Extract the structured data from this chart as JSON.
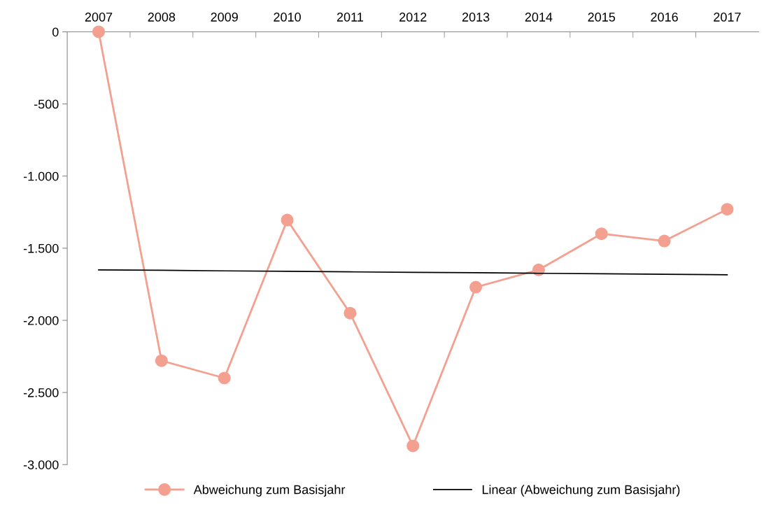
{
  "chart_data": {
    "type": "line",
    "categories": [
      "2007",
      "2008",
      "2009",
      "2010",
      "2011",
      "2012",
      "2013",
      "2014",
      "2015",
      "2016",
      "2017"
    ],
    "series": [
      {
        "name": "Abweichung zum Basisjahr",
        "color": "#f4a090",
        "marker": "circle",
        "values": [
          0,
          -2280,
          -2400,
          -1305,
          -1950,
          -2870,
          -1770,
          -1650,
          -1400,
          -1450,
          -1230
        ]
      },
      {
        "name": "Linear (Abweichung zum Basisjahr)",
        "color": "#000000",
        "marker": "none",
        "values": [
          -1650,
          -1653,
          -1657,
          -1660,
          -1664,
          -1667,
          -1670,
          -1674,
          -1677,
          -1681,
          -1684
        ]
      }
    ],
    "ylim": [
      -3000,
      0
    ],
    "yticks": [
      0,
      {
        "value": -500,
        "label": "-500"
      },
      {
        "value": -1000,
        "label": "-1.000"
      },
      {
        "value": -1500,
        "label": "-1.500"
      },
      {
        "value": -2000,
        "label": "-2.000"
      },
      {
        "value": -2500,
        "label": "-2.500"
      },
      {
        "value": -3000,
        "label": "-3.000"
      }
    ],
    "grid": false,
    "legend": "bottom"
  }
}
